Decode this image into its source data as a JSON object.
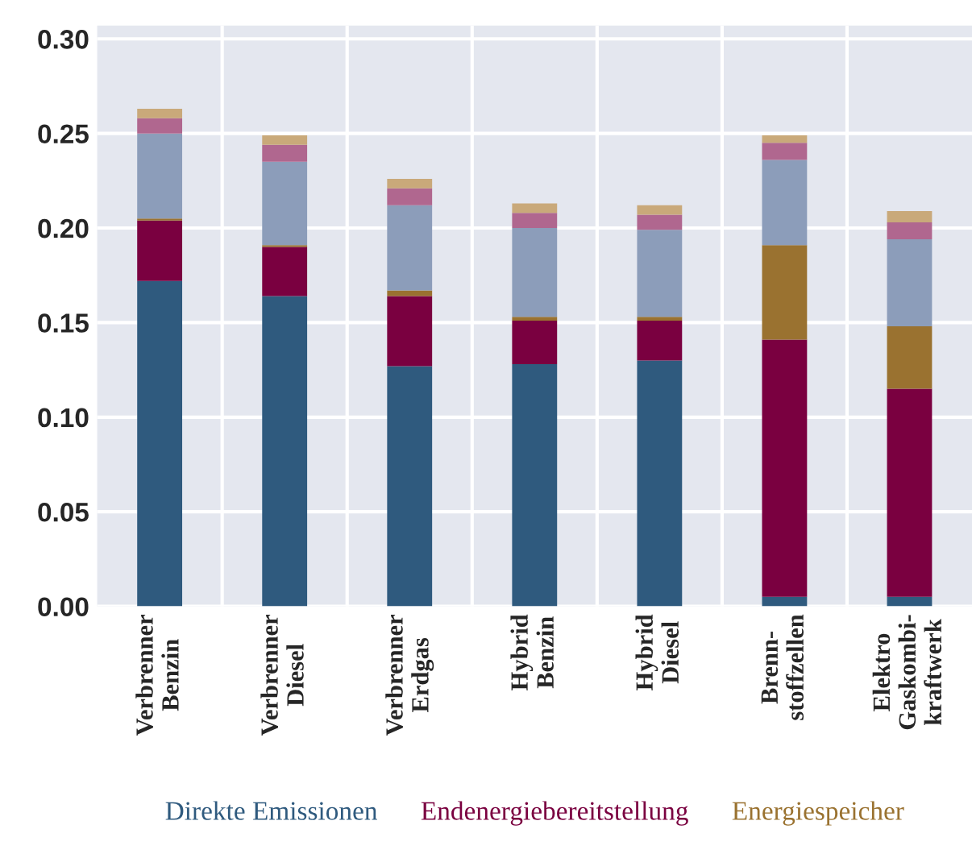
{
  "chart_data": {
    "type": "bar",
    "stacked": true,
    "categories": [
      "Verbrenner\nBenzin",
      "Verbrenner\nDiesel",
      "Verbrenner\nErdgas",
      "Hybrid\nBenzin",
      "Hybrid\nDiesel",
      "Brenn-\nstoffzellen",
      "Elektro\nGaskombi-\nkraftwerk"
    ],
    "series": [
      {
        "name": "Direkte Emissionen",
        "color": "#2f5a7e",
        "values": [
          0.172,
          0.164,
          0.127,
          0.128,
          0.13,
          0.005,
          0.005
        ]
      },
      {
        "name": "Endenergiebereitstellung",
        "color": "#7a0040",
        "values": [
          0.032,
          0.026,
          0.037,
          0.023,
          0.021,
          0.136,
          0.11
        ]
      },
      {
        "name": "Energiespeicher",
        "color": "#9a7230",
        "values": [
          0.001,
          0.001,
          0.003,
          0.002,
          0.002,
          0.05,
          0.033
        ]
      },
      {
        "color": "#8c9dba",
        "values": [
          0.045,
          0.044,
          0.045,
          0.047,
          0.046,
          0.045,
          0.046
        ]
      },
      {
        "color": "#b0678f",
        "values": [
          0.008,
          0.009,
          0.009,
          0.008,
          0.008,
          0.009,
          0.009
        ]
      },
      {
        "color": "#c9a97a",
        "values": [
          0.005,
          0.005,
          0.005,
          0.005,
          0.005,
          0.004,
          0.006
        ]
      }
    ],
    "ylim": [
      0,
      0.307
    ],
    "yticks": [
      {
        "value": 0,
        "label": "0.00"
      },
      {
        "value": 0.05,
        "label": "0.05"
      },
      {
        "value": 0.1,
        "label": "0.10"
      },
      {
        "value": 0.15,
        "label": "0.15"
      },
      {
        "value": 0.2,
        "label": "0.20"
      },
      {
        "value": 0.25,
        "label": "0.25"
      },
      {
        "value": 0.3,
        "label": "0.30"
      }
    ],
    "grid": true,
    "legend": "bottom"
  }
}
